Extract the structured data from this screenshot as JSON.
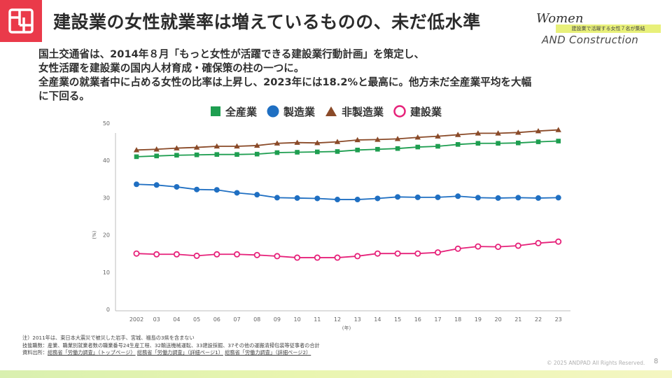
{
  "header": {
    "title": "建設業の女性就業率は増えているものの、未だ低水準",
    "brand_script": "Women",
    "brand_tagline": "建設業で活躍する女性７名が集結",
    "brand_name": "AND Construction"
  },
  "lead": {
    "line1": "国土交通省は、2014年８月「もっと女性が活躍できる建設業行動計画」を策定し、",
    "line2": "女性活躍を建設業の国内人材育成・確保策の柱の一つに。",
    "line3": "全産業の就業者中に占める女性の比率は上昇し、2023年には18.2%と最高に。他方未だ全産業平均を大幅",
    "line4": "に下回る。"
  },
  "chart_data": {
    "type": "line",
    "categories": [
      "2002",
      "03",
      "04",
      "05",
      "06",
      "07",
      "08",
      "09",
      "10",
      "11",
      "12",
      "13",
      "14",
      "15",
      "16",
      "17",
      "18",
      "19",
      "20",
      "21",
      "22",
      "23"
    ],
    "series": [
      {
        "name": "全産業",
        "color": "#1e9e50",
        "marker": "square",
        "values": [
          41.0,
          41.2,
          41.4,
          41.5,
          41.6,
          41.6,
          41.7,
          42.1,
          42.2,
          42.3,
          42.4,
          42.8,
          43.0,
          43.2,
          43.6,
          43.8,
          44.3,
          44.6,
          44.6,
          44.7,
          45.0,
          45.2
        ]
      },
      {
        "name": "製造業",
        "color": "#1f6fc2",
        "marker": "circle",
        "values": [
          33.6,
          33.4,
          32.9,
          32.2,
          32.1,
          31.3,
          30.8,
          30.0,
          29.9,
          29.8,
          29.5,
          29.5,
          29.8,
          30.2,
          30.1,
          30.1,
          30.4,
          30.0,
          29.9,
          30.0,
          29.9,
          30.0
        ]
      },
      {
        "name": "非製造業",
        "color": "#8a4a28",
        "marker": "triangle",
        "values": [
          42.8,
          43.0,
          43.3,
          43.5,
          43.8,
          43.8,
          44.0,
          44.6,
          44.8,
          44.7,
          45.0,
          45.5,
          45.6,
          45.8,
          46.2,
          46.5,
          46.9,
          47.3,
          47.3,
          47.5,
          47.9,
          48.2
        ]
      },
      {
        "name": "建設業",
        "color": "#e6227a",
        "marker": "open-circle",
        "values": [
          15.0,
          14.8,
          14.8,
          14.4,
          14.8,
          14.8,
          14.6,
          14.3,
          13.9,
          13.9,
          13.9,
          14.3,
          15.0,
          15.0,
          15.0,
          15.3,
          16.3,
          16.9,
          16.8,
          17.1,
          17.8,
          18.2
        ]
      }
    ],
    "y_ticks": [
      "0",
      "10",
      "20",
      "30",
      "40",
      "50"
    ],
    "ylim": [
      0,
      50
    ],
    "ylabel": "(%)",
    "xlabel": "(年)",
    "grid": false,
    "legend": "top"
  },
  "notes": {
    "line1": "注）2011年は、東日本大震災で被災した岩手、宮城、福島の3県を含まない",
    "line2": "技能職数：産業、職業別就業者数の職業番号24生産工程、32輸送機械運転、33建設採掘、37その他の運搬清掃包装等従事者の合計",
    "line3_prefix": "資料出所：",
    "link1": "総務省「労働力調査」（トップページ）",
    "link2": "総務省「労働力調査」（詳細ページ1）",
    "link3": "総務省「労働力調査」（詳細ページ2）"
  },
  "footer": {
    "copyright": "© 2025 ANDPAD All Rights Reserved.",
    "page": "8"
  },
  "colors": {
    "brand_red": "#ea3a4a",
    "highlight": "#e8f07a"
  }
}
